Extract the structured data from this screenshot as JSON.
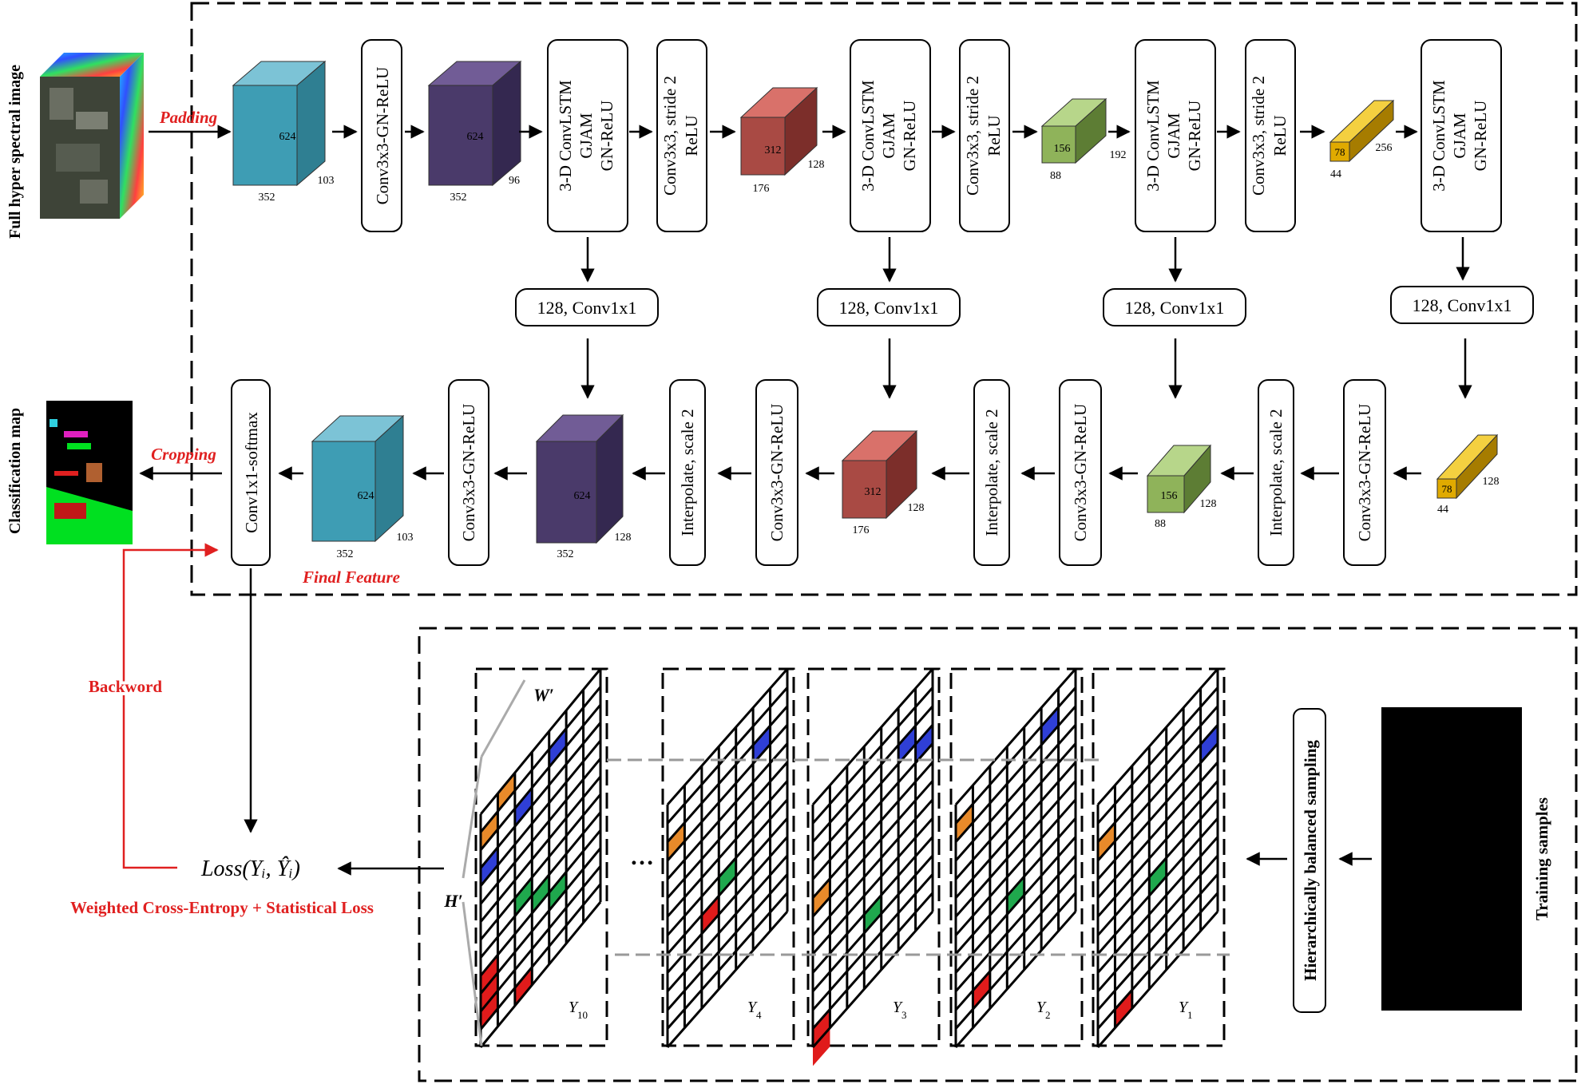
{
  "labels": {
    "full_image": "Full hyper spectral image",
    "classification_map": "Classification map",
    "padding": "Padding",
    "cropping": "Cropping",
    "final_feature": "Final Feature",
    "backward": "Backword",
    "loss_formula": "Loss(Yᵢ, Ŷᵢ)",
    "loss_name": "Weighted Cross-Entropy + Statistical Loss",
    "training_samples": "Training samples",
    "sampling": "Hierarchically balanced sampling",
    "ellipsis": "…",
    "h_prime": "H′",
    "w_prime": "W′"
  },
  "encoder_ops": {
    "conv_gn": "Conv3x3-GN-ReLU",
    "lstm_1": "3-D ConvLSTM",
    "lstm_2": "GJAM",
    "lstm_3": "GN-ReLU",
    "stride_1": "Conv3x3, stride 2",
    "stride_2": "ReLU",
    "skip": "128, Conv1x1"
  },
  "decoder_ops": {
    "softmax": "Conv1x1-softmax",
    "conv_gn": "Conv3x3-GN-ReLU",
    "interp": "Interpolate, scale 2"
  },
  "enc_cubes": [
    {
      "h": "624",
      "w": "352",
      "d": "103"
    },
    {
      "h": "624",
      "w": "352",
      "d": "96"
    },
    {
      "h": "312",
      "w": "176",
      "d": "128"
    },
    {
      "h": "156",
      "w": "88",
      "d": "192"
    },
    {
      "h": "78",
      "w": "44",
      "d": "256"
    }
  ],
  "dec_cubes": [
    {
      "h": "624",
      "w": "352",
      "d": "103"
    },
    {
      "h": "624",
      "w": "352",
      "d": "128"
    },
    {
      "h": "312",
      "w": "176",
      "d": "128"
    },
    {
      "h": "156",
      "w": "88",
      "d": "128"
    },
    {
      "h": "78",
      "w": "44",
      "d": "128"
    }
  ],
  "grid_labels": [
    {
      "base": "Y",
      "sub": "10"
    },
    {
      "base": "Y",
      "sub": "4"
    },
    {
      "base": "Y",
      "sub": "3"
    },
    {
      "base": "Y",
      "sub": "2"
    },
    {
      "base": "Y",
      "sub": "1"
    }
  ],
  "colors": {
    "teal": "#4aa7bf",
    "purple": "#4d3d6e",
    "red": "#a94a44",
    "green": "#8fb35a",
    "yellow": "#e0aa00",
    "accent_red": "#e02020",
    "cell_orange": "#e88a2a",
    "cell_blue": "#2f3fd6",
    "cell_green": "#1fa84d",
    "cell_red": "#e01b1b"
  }
}
